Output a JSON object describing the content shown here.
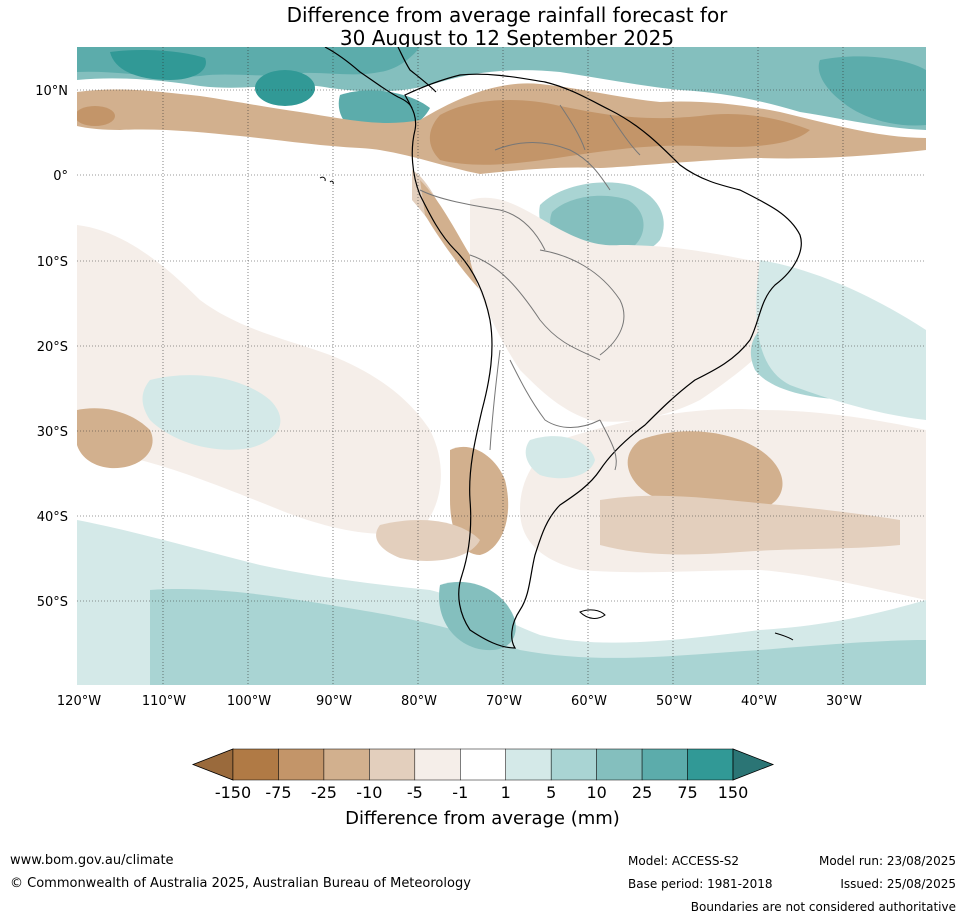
{
  "title": {
    "line1": "Difference from average rainfall forecast for",
    "line2": "30 August to 12 September 2025"
  },
  "map": {
    "longitude_labels": [
      "120°W",
      "110°W",
      "100°W",
      "90°W",
      "80°W",
      "70°W",
      "60°W",
      "50°W",
      "40°W",
      "30°W"
    ],
    "latitude_labels": [
      "10°N",
      "0°",
      "10°S",
      "20°S",
      "30°S",
      "40°S",
      "50°S"
    ]
  },
  "colorbar": {
    "title": "Difference from average (mm)",
    "tick_labels": [
      "-150",
      "-75",
      "-25",
      "-10",
      "-5",
      "-1",
      "1",
      "5",
      "10",
      "25",
      "75",
      "150"
    ],
    "colors": [
      "#9a6a3c",
      "#b07a45",
      "#c39569",
      "#d2b08e",
      "#e3cfbd",
      "#f5eee9",
      "#ffffff",
      "#d4e9e8",
      "#a9d4d3",
      "#84bfbe",
      "#5cacab",
      "#319996",
      "#2b7575"
    ]
  },
  "footer": {
    "url": "www.bom.gov.au/climate",
    "copyright": "© Commonwealth of Australia 2025, Australian Bureau of Meteorology",
    "model": "Model: ACCESS-S2",
    "base_period": "Base period: 1981-2018",
    "model_run": "Model run: 23/08/2025",
    "issued": "Issued: 25/08/2025",
    "disclaimer": "Boundaries are not considered authoritative"
  }
}
